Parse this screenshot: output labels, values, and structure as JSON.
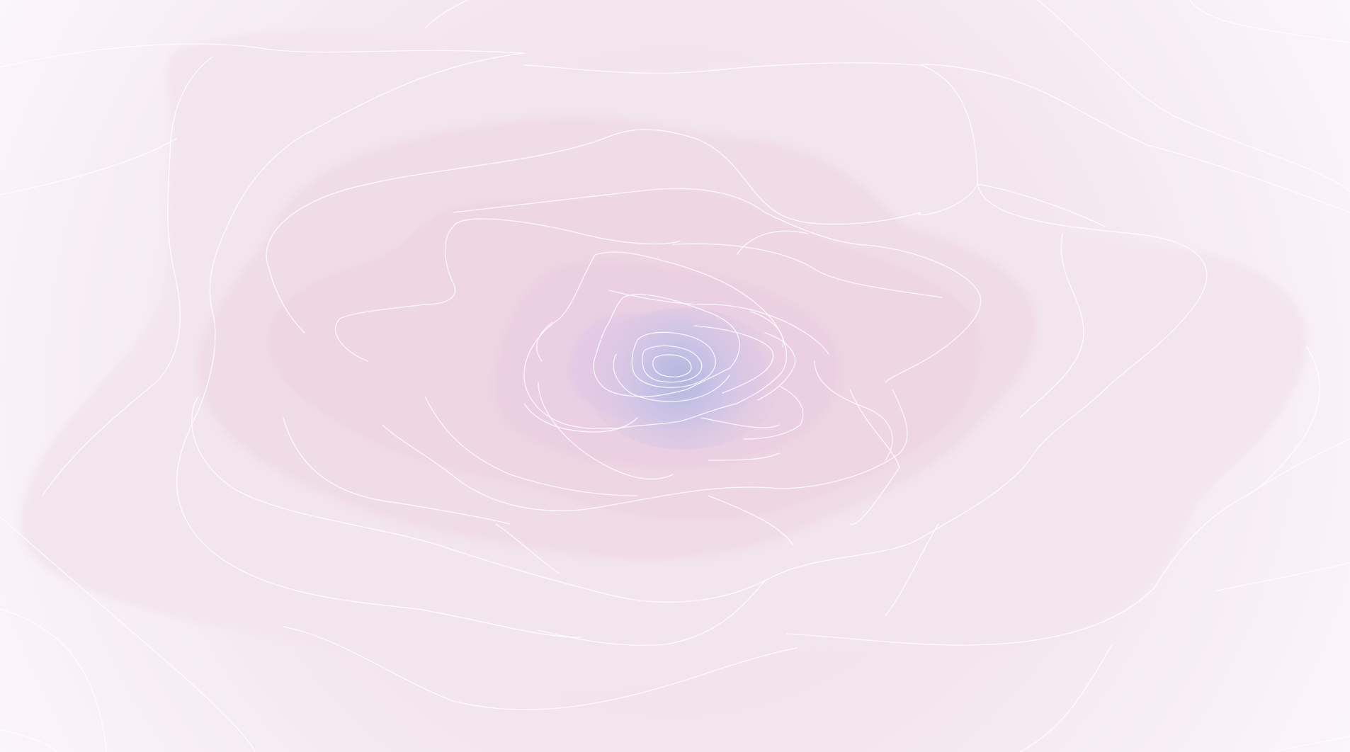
{
  "wallpaper": {
    "subject": "abstract-rose-swirl",
    "colors": {
      "background_outer": "#faf4f9",
      "background_mid": "#f4e6ee",
      "petal_outer": "#f2e2ea",
      "petal_mid": "#eed8e3",
      "petal_inner": "#e9cde2",
      "center_violet": "#dcc4e6",
      "center_blue": "#b6b8de",
      "outline": "#ffffff"
    }
  }
}
